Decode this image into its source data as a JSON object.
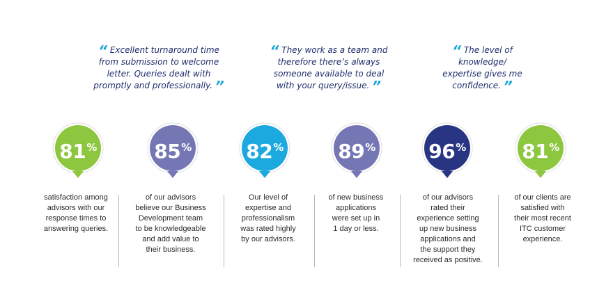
{
  "quotes": [
    {
      "lines": [
        "Excellent turnaround time",
        "from submission to welcome",
        "letter. Queries dealt with",
        "promptly and professionally."
      ]
    },
    {
      "lines": [
        "They work as a team and",
        "therefore there’s always",
        "someone available to deal",
        "with your query/issue."
      ]
    },
    {
      "lines": [
        "The level of",
        "knowledge/",
        "expertise gives me",
        "confidence."
      ]
    }
  ],
  "quote_open": "“",
  "quote_close": "”",
  "metrics": [
    {
      "value": "81",
      "unit": "%",
      "color": "#8dc63f",
      "desc": [
        "satisfaction among",
        "advisors with our",
        "response times to",
        "answering queries."
      ]
    },
    {
      "value": "85",
      "unit": "%",
      "color": "#7577b4",
      "desc": [
        "of our advisors",
        "believe our Business",
        "Development team",
        "to be knowledgeable",
        "and add value to",
        "their business."
      ]
    },
    {
      "value": "82",
      "unit": "%",
      "color": "#1ba9df",
      "desc": [
        "Our level of",
        "expertise and",
        "professionalism",
        "was rated highly",
        "by our advisors."
      ]
    },
    {
      "value": "89",
      "unit": "%",
      "color": "#7577b4",
      "desc": [
        "of new business",
        "applications",
        "were set up in",
        "1 day or less."
      ]
    },
    {
      "value": "96",
      "unit": "%",
      "color": "#283583",
      "desc": [
        "of our advisors",
        "rated their",
        "experience setting",
        "up new business",
        "applications and",
        "the support they",
        "received as positive."
      ]
    },
    {
      "value": "81",
      "unit": "%",
      "color": "#8dc63f",
      "desc": [
        "of our clients are",
        "satisfied with",
        "their most recent",
        "ITC customer",
        "experience."
      ]
    }
  ]
}
